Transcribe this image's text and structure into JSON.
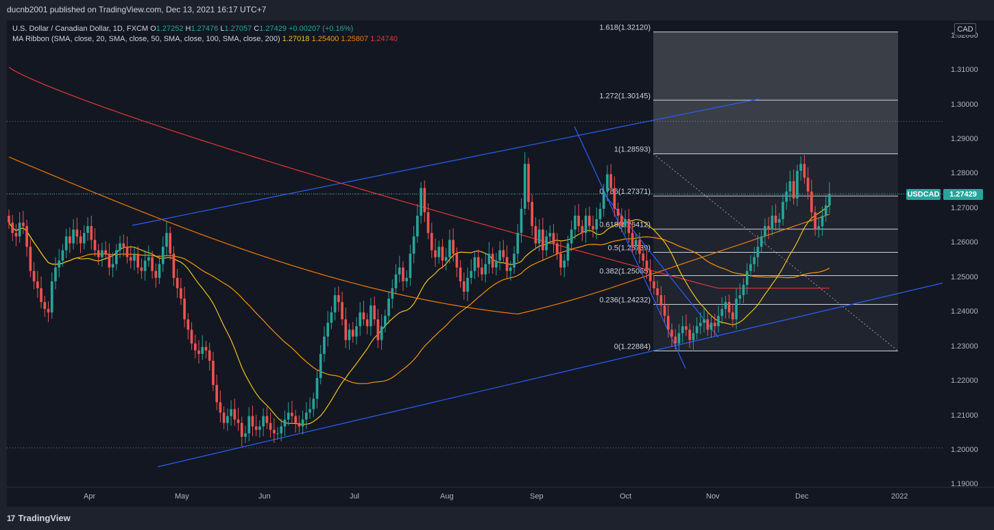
{
  "header": {
    "publisher": "ducnb2001 published on TradingView.com, Dec 13, 2021 16:17 UTC+7"
  },
  "footer": {
    "brand": "TradingView",
    "logo_glyph": "17"
  },
  "legend": {
    "symbol": "U.S. Dollar / Canadian Dollar, 1D, FXCM",
    "open_label": "O",
    "open": "1.27252",
    "high_label": "H",
    "high": "1.27476",
    "low_label": "L",
    "low": "1.27057",
    "close_label": "C",
    "close": "1.27429",
    "change": "+0.00207 (+0.16%)",
    "ma_title": "MA Ribbon (SMA, close, 20, SMA, close, 50, SMA, close, 100, SMA, close, 200)",
    "ma_values": [
      "1.27018",
      "1.25400",
      "1.25807",
      "1.24740"
    ]
  },
  "price_axis": {
    "currency": "CAD",
    "symbol_badge": "USDCAD",
    "last_price": "1.27429"
  },
  "colors": {
    "background": "#131722",
    "up": "#26a69a",
    "down": "#ef5350",
    "ma20": "#f5c518",
    "ma50": "#ff9800",
    "ma100": "#f57c00",
    "ma200": "#e53935",
    "trendline": "#2962ff",
    "fib": "#d1d4dc"
  },
  "chart_data": {
    "type": "candlestick",
    "title": "U.S. Dollar / Canadian Dollar, 1D, FXCM",
    "ylim": [
      1.1895,
      1.3245
    ],
    "y_ticks": [
      "1.19000",
      "1.20000",
      "1.21000",
      "1.22000",
      "1.23000",
      "1.24000",
      "1.25000",
      "1.26000",
      "1.27000",
      "1.28000",
      "1.29000",
      "1.30000",
      "1.31000",
      "1.32000"
    ],
    "x_ticks": [
      "Apr",
      "May",
      "Jun",
      "Jul",
      "Aug",
      "Sep",
      "Oct",
      "Nov",
      "Dec",
      "2022"
    ],
    "grid": false,
    "closes": [
      1.266,
      1.263,
      1.262,
      1.266,
      1.265,
      1.259,
      1.252,
      1.249,
      1.247,
      1.243,
      1.241,
      1.24,
      1.249,
      1.253,
      1.255,
      1.258,
      1.262,
      1.26,
      1.264,
      1.262,
      1.26,
      1.263,
      1.265,
      1.261,
      1.258,
      1.256,
      1.258,
      1.257,
      1.253,
      1.254,
      1.258,
      1.26,
      1.259,
      1.256,
      1.255,
      1.257,
      1.253,
      1.252,
      1.255,
      1.256,
      1.252,
      1.25,
      1.254,
      1.259,
      1.263,
      1.257,
      1.25,
      1.247,
      1.244,
      1.238,
      1.235,
      1.231,
      1.229,
      1.228,
      1.23,
      1.229,
      1.226,
      1.219,
      1.214,
      1.211,
      1.208,
      1.21,
      1.212,
      1.209,
      1.208,
      1.204,
      1.205,
      1.21,
      1.207,
      1.206,
      1.207,
      1.21,
      1.208,
      1.206,
      1.205,
      1.205,
      1.207,
      1.209,
      1.211,
      1.21,
      1.208,
      1.207,
      1.209,
      1.211,
      1.212,
      1.215,
      1.221,
      1.228,
      1.233,
      1.237,
      1.24,
      1.245,
      1.243,
      1.238,
      1.232,
      1.235,
      1.233,
      1.236,
      1.24,
      1.238,
      1.236,
      1.242,
      1.238,
      1.232,
      1.236,
      1.239,
      1.244,
      1.247,
      1.251,
      1.253,
      1.249,
      1.25,
      1.257,
      1.262,
      1.268,
      1.276,
      1.269,
      1.263,
      1.258,
      1.256,
      1.259,
      1.255,
      1.256,
      1.261,
      1.257,
      1.253,
      1.249,
      1.246,
      1.25,
      1.252,
      1.256,
      1.253,
      1.251,
      1.254,
      1.257,
      1.253,
      1.255,
      1.258,
      1.256,
      1.252,
      1.253,
      1.257,
      1.263,
      1.27,
      1.283,
      1.272,
      1.265,
      1.26,
      1.264,
      1.258,
      1.262,
      1.263,
      1.26,
      1.257,
      1.253,
      1.255,
      1.26,
      1.264,
      1.268,
      1.265,
      1.263,
      1.268,
      1.265,
      1.264,
      1.267,
      1.27,
      1.275,
      1.28,
      1.276,
      1.27,
      1.268,
      1.265,
      1.267,
      1.263,
      1.259,
      1.261,
      1.257,
      1.255,
      1.252,
      1.249,
      1.247,
      1.245,
      1.242,
      1.239,
      1.235,
      1.233,
      1.231,
      1.234,
      1.236,
      1.235,
      1.232,
      1.234,
      1.236,
      1.237,
      1.238,
      1.235,
      1.237,
      1.236,
      1.239,
      1.241,
      1.243,
      1.24,
      1.238,
      1.244,
      1.245,
      1.248,
      1.252,
      1.254,
      1.256,
      1.259,
      1.262,
      1.265,
      1.264,
      1.268,
      1.266,
      1.267,
      1.272,
      1.275,
      1.278,
      1.273,
      1.281,
      1.283,
      1.279,
      1.275,
      1.269,
      1.264,
      1.265,
      1.268,
      1.271,
      1.2743
    ],
    "moving_averages": [
      {
        "name": "SMA 20",
        "value": 1.27018
      },
      {
        "name": "SMA 50",
        "value": 1.254
      },
      {
        "name": "SMA 100",
        "value": 1.25807
      },
      {
        "name": "SMA 200",
        "value": 1.2474
      }
    ],
    "fibonacci": [
      {
        "level": "0",
        "price": 1.22884,
        "label": "0(1.22884)"
      },
      {
        "level": "0.236",
        "price": 1.24232,
        "label": "0.236(1.24232)"
      },
      {
        "level": "0.382",
        "price": 1.25065,
        "label": "0.382(1.25065)"
      },
      {
        "level": "0.5",
        "price": 1.25739,
        "label": "0.5(1.25739)"
      },
      {
        "level": "0.618",
        "price": 1.26412,
        "label": "0.618(1.26412)"
      },
      {
        "level": "0.786",
        "price": 1.27371,
        "label": "0.786(1.27371)"
      },
      {
        "level": "1",
        "price": 1.28593,
        "label": "1(1.28593)"
      },
      {
        "level": "1.272",
        "price": 1.30145,
        "label": "1.272(1.30145)"
      },
      {
        "level": "1.618",
        "price": 1.3212,
        "label": "1.618(1.32120)"
      }
    ],
    "horizontal_levels": [
      1.2953,
      1.2743,
      1.2008
    ]
  }
}
